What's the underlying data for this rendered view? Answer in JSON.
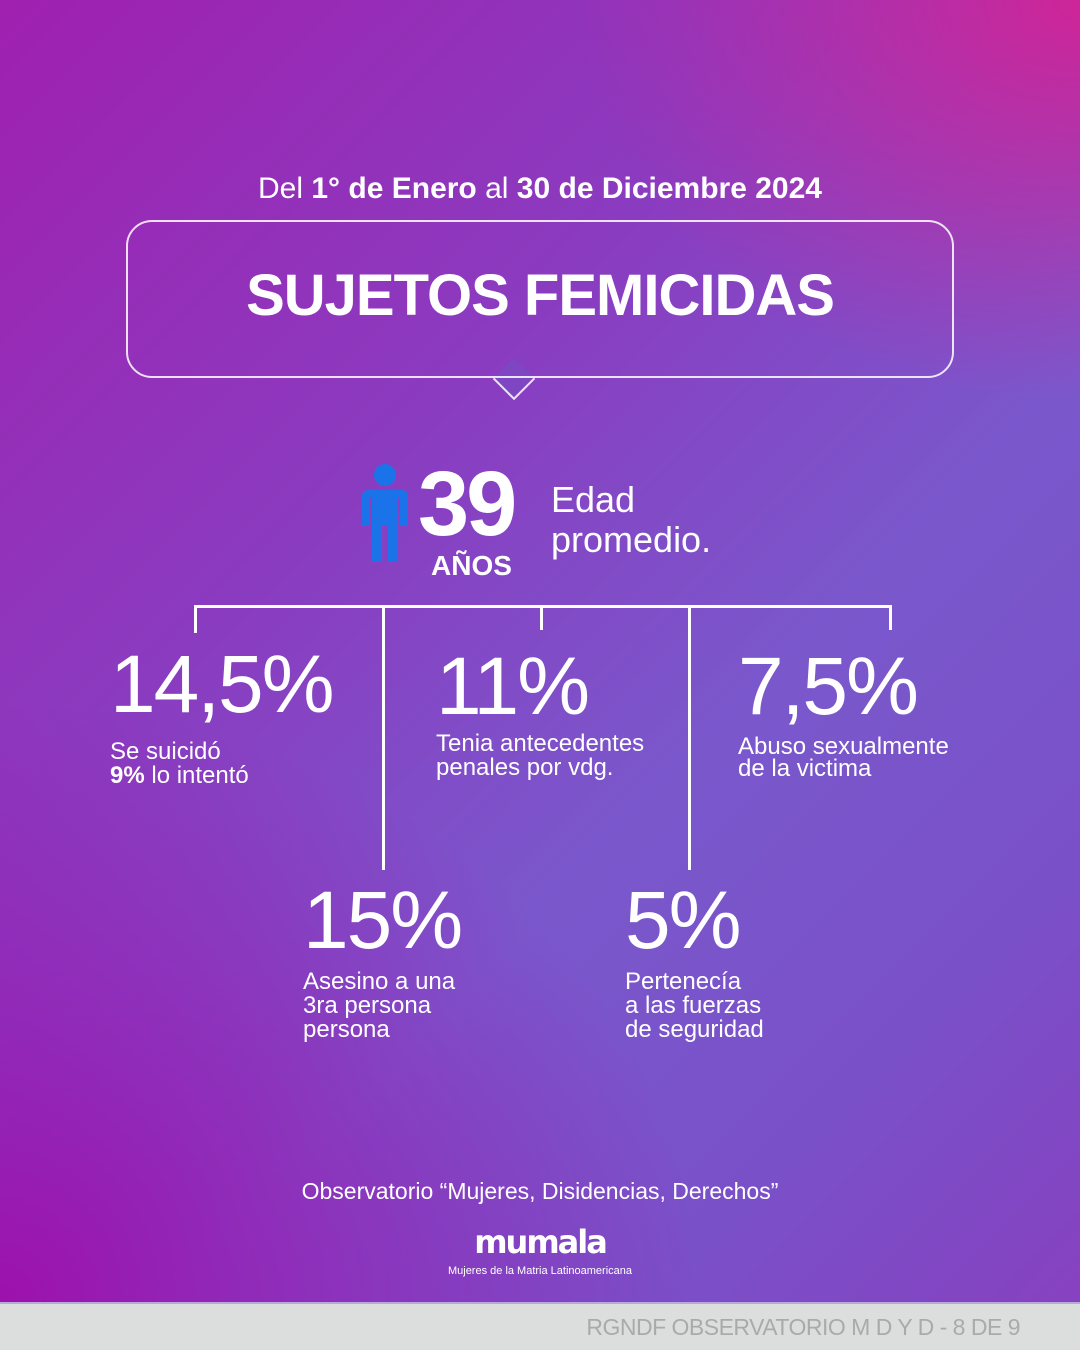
{
  "header": {
    "date_prefix": "Del ",
    "date_start": "1° de Enero",
    "date_mid": " al ",
    "date_end": "30 de Diciembre 2024",
    "title": "SUJETOS FEMICIDAS"
  },
  "age": {
    "value": "39",
    "unit": "AÑOS",
    "label_line1": "Edad",
    "label_line2": "promedio.",
    "icon": "person-icon",
    "icon_color": "#1a73e8"
  },
  "stats": [
    {
      "value": "14,5%",
      "line1": "Se suicidó",
      "line2_bold": "9%",
      "line2": " lo intentó"
    },
    {
      "value": "11%",
      "line1": "Tenia antecedentes",
      "line2": "penales por vdg."
    },
    {
      "value": "7,5%",
      "line1": "Abuso sexualmente",
      "line2": "de la victima"
    },
    {
      "value": "15%",
      "line1": "Asesino a una",
      "line2": "3ra persona",
      "line3": "persona"
    },
    {
      "value": "5%",
      "line1": "Pertenecía",
      "line2": "a las fuerzas",
      "line3": "de seguridad"
    }
  ],
  "footer": {
    "observatorio_bold": "Observatorio",
    "observatorio_name": " “Mujeres, Disidencias, Derechos”",
    "logo_text": "mumala",
    "logo_subtitle": "Mujeres de la Matria Latinoamericana",
    "page_label": "RGNDF OBSERVATORIO M D Y D - 8 DE 9"
  }
}
